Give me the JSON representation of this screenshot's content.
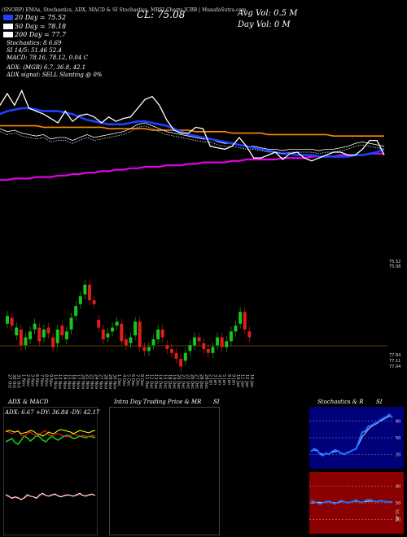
{
  "header": {
    "title_line": "(SNORP) EMAs, Stochastics, ADX, MACD & SI Stochastics, MRSI Charts ICBB | MunafaSutra.com"
  },
  "legend": [
    {
      "label": "20 Day = 75.52",
      "color": "#1e40ff"
    },
    {
      "label": "50 Day = 78.18",
      "color": "#ffffff"
    },
    {
      "label": "200 Day = 77.7",
      "color": "#ffffff"
    }
  ],
  "close_label": "CL: 75.08",
  "avg_vol": "Avg Vol: 0.5 M",
  "day_vol": "Day Vol: 0  M",
  "indicators": {
    "stochastics": "Stochastics: 8                   6.69",
    "si": "SI 14/5: 51.46   52.4",
    "macd": "MACD: 78.16,  78.12,  0.04   C",
    "adx": "ADX:                          (MGR) 6.7,  36.8,  42.1",
    "adx_signal": "ADX  signal: SELL  Slanting @ 0%"
  },
  "main_chart": {
    "price_tag_top": "75.52",
    "price_tag_top2": "75.08",
    "price_tags_bottom": [
      "77.84",
      "77.11",
      "77.04"
    ]
  },
  "dates": [
    "27 Oct",
    "30 Oct",
    "31 Oct",
    "1 Nov",
    "2 Nov",
    "3 Nov",
    "6 Nov",
    "7 Nov",
    "8 Nov",
    "9 Nov",
    "10 Nov",
    "13 Nov",
    "14 Nov",
    "15 Nov",
    "16 Nov",
    "17 Nov",
    "20 Nov",
    "21 Nov",
    "22 Nov",
    "24 Nov",
    "27 Nov",
    "28 Nov",
    "29 Nov",
    "30 Nov",
    "1 Dec",
    "4 Dec",
    "5 Dec",
    "6 Dec",
    "7 Dec",
    "8 Dec",
    "11 Dec",
    "12 Dec",
    "13 Dec",
    "14 Dec",
    "15 Dec",
    "18 Dec",
    "19 Dec",
    "20 Dec",
    "21 Dec",
    "22 Dec",
    "26 Dec",
    "27 Dec",
    "28 Dec",
    "29 Dec",
    "2 Jan",
    "3 Jan",
    "4 Jan",
    "5 Jan",
    "8 Jan",
    "9 Jan",
    "10 Jan",
    "11 Jan",
    "12 Jan",
    "16 Jan"
  ],
  "panels": {
    "adx_macd": {
      "title": "ADX  & MACD",
      "readout": "ADX: 6.67  +DY: 36.84  -DY: 42.17"
    },
    "intraday": {
      "title": "Intra  Day  Trading  Price  & MR",
      "title_si": "SI"
    },
    "stochastics": {
      "title": "Stochastics  & R",
      "title_si": "SI",
      "axis_top": [
        "80",
        "50",
        "20"
      ],
      "axis_bottom": [
        "80",
        "50",
        "20"
      ],
      "axis_right_label": "51.46"
    }
  },
  "chart_data": {
    "type": "line",
    "title": "",
    "candles": [
      {
        "o": 78.3,
        "c": 78.7
      },
      {
        "o": 78.6,
        "c": 78.2
      },
      {
        "o": 77.7,
        "c": 78.1
      },
      {
        "o": 78.0,
        "c": 77.2
      },
      {
        "o": 77.2,
        "c": 77.6
      },
      {
        "o": 77.5,
        "c": 77.9
      },
      {
        "o": 78.0,
        "c": 78.3
      },
      {
        "o": 78.1,
        "c": 77.4
      },
      {
        "o": 77.6,
        "c": 78.0
      },
      {
        "o": 78.1,
        "c": 77.8
      },
      {
        "o": 77.6,
        "c": 77.1
      },
      {
        "o": 77.3,
        "c": 78.0
      },
      {
        "o": 78.2,
        "c": 77.7
      },
      {
        "o": 77.5,
        "c": 77.9
      },
      {
        "o": 78.0,
        "c": 78.6
      },
      {
        "o": 78.7,
        "c": 79.2
      },
      {
        "o": 79.3,
        "c": 79.7
      },
      {
        "o": 79.8,
        "c": 80.3
      },
      {
        "o": 80.3,
        "c": 79.5
      },
      {
        "o": 79.5,
        "c": 79.3
      },
      {
        "o": 78.5,
        "c": 78.1
      },
      {
        "o": 78.0,
        "c": 77.5
      },
      {
        "o": 77.6,
        "c": 77.8
      },
      {
        "o": 77.9,
        "c": 78.1
      },
      {
        "o": 78.2,
        "c": 78.4
      },
      {
        "o": 78.3,
        "c": 77.4
      },
      {
        "o": 77.5,
        "c": 77.2
      },
      {
        "o": 77.3,
        "c": 77.6
      },
      {
        "o": 77.7,
        "c": 78.4
      },
      {
        "o": 78.4,
        "c": 77.1
      },
      {
        "o": 77.1,
        "c": 76.9
      },
      {
        "o": 76.9,
        "c": 77.1
      },
      {
        "o": 77.2,
        "c": 77.5
      },
      {
        "o": 77.5,
        "c": 78.0
      },
      {
        "o": 78.0,
        "c": 77.6
      },
      {
        "o": 77.2,
        "c": 77.0
      },
      {
        "o": 77.0,
        "c": 76.8
      },
      {
        "o": 76.8,
        "c": 76.5
      },
      {
        "o": 76.5,
        "c": 76.1
      },
      {
        "o": 76.4,
        "c": 76.8
      },
      {
        "o": 76.9,
        "c": 77.2
      },
      {
        "o": 77.2,
        "c": 77.6
      },
      {
        "o": 77.6,
        "c": 77.4
      },
      {
        "o": 77.3,
        "c": 77.0
      },
      {
        "o": 77.0,
        "c": 76.8
      },
      {
        "o": 76.8,
        "c": 77.1
      },
      {
        "o": 77.2,
        "c": 77.6
      },
      {
        "o": 77.6,
        "c": 77.1
      },
      {
        "o": 77.1,
        "c": 77.4
      },
      {
        "o": 77.4,
        "c": 77.9
      },
      {
        "o": 77.9,
        "c": 78.2
      },
      {
        "o": 78.3,
        "c": 78.9
      },
      {
        "o": 78.9,
        "c": 78.0
      },
      {
        "o": 77.9,
        "c": 77.6
      }
    ],
    "ema20": [
      86,
      88,
      89,
      90,
      90,
      89,
      88,
      88,
      88,
      87,
      86,
      84,
      82,
      81,
      80,
      79,
      79,
      79,
      80,
      81,
      81,
      80,
      79,
      78,
      76,
      74,
      72,
      71,
      70,
      69,
      68,
      67,
      66,
      65,
      64,
      63,
      62,
      61,
      60,
      59,
      59,
      58,
      58,
      58,
      57,
      57,
      57,
      57,
      57,
      58,
      58,
      59,
      60,
      62
    ],
    "ema50": [
      78,
      78,
      78,
      78,
      78,
      78,
      77,
      77,
      77,
      77,
      77,
      77,
      77,
      77,
      77,
      76,
      76,
      76,
      76,
      76,
      76,
      75,
      75,
      75,
      75,
      75,
      75,
      74,
      74,
      74,
      74,
      74,
      73,
      73,
      73,
      73,
      73,
      72,
      72,
      72,
      72,
      72,
      72,
      72,
      72,
      72,
      71,
      71,
      71,
      71,
      71,
      71,
      71,
      71
    ],
    "ema200": [
      41,
      41,
      42,
      42,
      42,
      43,
      43,
      43,
      44,
      44,
      45,
      45,
      46,
      46,
      47,
      47,
      48,
      48,
      49,
      49,
      50,
      50,
      50,
      51,
      51,
      51,
      52,
      52,
      53,
      53,
      53,
      53,
      54,
      54,
      55,
      55,
      55,
      55,
      55,
      56,
      56,
      56,
      56,
      57,
      57,
      57,
      57,
      58,
      58,
      58,
      58,
      59,
      59,
      59
    ],
    "lwma": [
      76,
      74,
      75,
      73,
      72,
      71,
      72,
      69,
      70,
      70,
      68,
      70,
      72,
      70,
      71,
      72,
      73,
      74,
      76,
      79,
      80,
      78,
      76,
      74,
      73,
      72,
      71,
      70,
      69,
      69,
      67,
      66,
      66,
      65,
      64,
      64,
      63,
      62,
      62,
      61,
      62,
      62,
      62,
      62,
      61,
      62,
      62,
      63,
      64,
      66,
      67,
      66,
      65,
      64
    ],
    "close": [
      92,
      100,
      92,
      102,
      90,
      88,
      86,
      83,
      80,
      88,
      81,
      85,
      86,
      84,
      80,
      84,
      81,
      83,
      84,
      90,
      96,
      98,
      92,
      82,
      75,
      73,
      73,
      77,
      76,
      64,
      63,
      62,
      64,
      70,
      64,
      56,
      56,
      58,
      60,
      55,
      59,
      60,
      56,
      54,
      56,
      58,
      60,
      60,
      58,
      58,
      62,
      68,
      68,
      58
    ],
    "adx_line": [
      60,
      62,
      61,
      60,
      61,
      58,
      59,
      60,
      62,
      61,
      58,
      57,
      55,
      57,
      60,
      58,
      59,
      62,
      63,
      62,
      61,
      60,
      58,
      60,
      62,
      61,
      60,
      59,
      61,
      62
    ],
    "plus_di": [
      48,
      50,
      52,
      47,
      45,
      50,
      55,
      53,
      49,
      52,
      56,
      54,
      50,
      48,
      52,
      55,
      52,
      50,
      53,
      55,
      56,
      54,
      52,
      53,
      55,
      54,
      53,
      55,
      54,
      53
    ],
    "minus_di": [
      62,
      60,
      58,
      60,
      62,
      56,
      54,
      58,
      60,
      57,
      55,
      57,
      60,
      62,
      56,
      55,
      57,
      58,
      56,
      55,
      54,
      56,
      58,
      56,
      55,
      56,
      55,
      54,
      56,
      55
    ],
    "macd": [
      50,
      48,
      45,
      47,
      46,
      43,
      46,
      50,
      48,
      47,
      45,
      50,
      52,
      49,
      48,
      50,
      51,
      48,
      47,
      49,
      50,
      49,
      48,
      50,
      52,
      49,
      48,
      50,
      51,
      49
    ],
    "macd_signal": [
      49,
      47,
      46,
      46,
      45,
      44,
      45,
      48,
      48,
      47,
      46,
      48,
      50,
      49,
      48,
      49,
      50,
      49,
      48,
      48,
      49,
      49,
      48,
      49,
      50,
      49,
      49,
      49,
      50,
      49
    ],
    "stoch": [
      25,
      30,
      28,
      20,
      18,
      22,
      20,
      25,
      28,
      26,
      22,
      20,
      23,
      25,
      28,
      30,
      45,
      60,
      62,
      70,
      72,
      75,
      78,
      82,
      85,
      88,
      92,
      86
    ],
    "stoch_signal": [
      26,
      28,
      26,
      22,
      20,
      21,
      21,
      23,
      25,
      25,
      23,
      21,
      22,
      24,
      27,
      30,
      40,
      52,
      58,
      65,
      70,
      73,
      76,
      80,
      83,
      86,
      89,
      87
    ],
    "mrsi": [
      55,
      52,
      50,
      48,
      50,
      52,
      53,
      50,
      48,
      51,
      54,
      52,
      50,
      51,
      53,
      55,
      52,
      50,
      54,
      56,
      55,
      53,
      52,
      54,
      53,
      52,
      51,
      52
    ],
    "mrsi_signal": [
      50,
      50,
      51,
      51,
      50,
      51,
      52,
      51,
      50,
      50,
      52,
      52,
      51,
      51,
      52,
      53,
      52,
      51,
      52,
      53,
      53,
      53,
      52,
      53,
      53,
      52,
      52,
      52
    ]
  }
}
